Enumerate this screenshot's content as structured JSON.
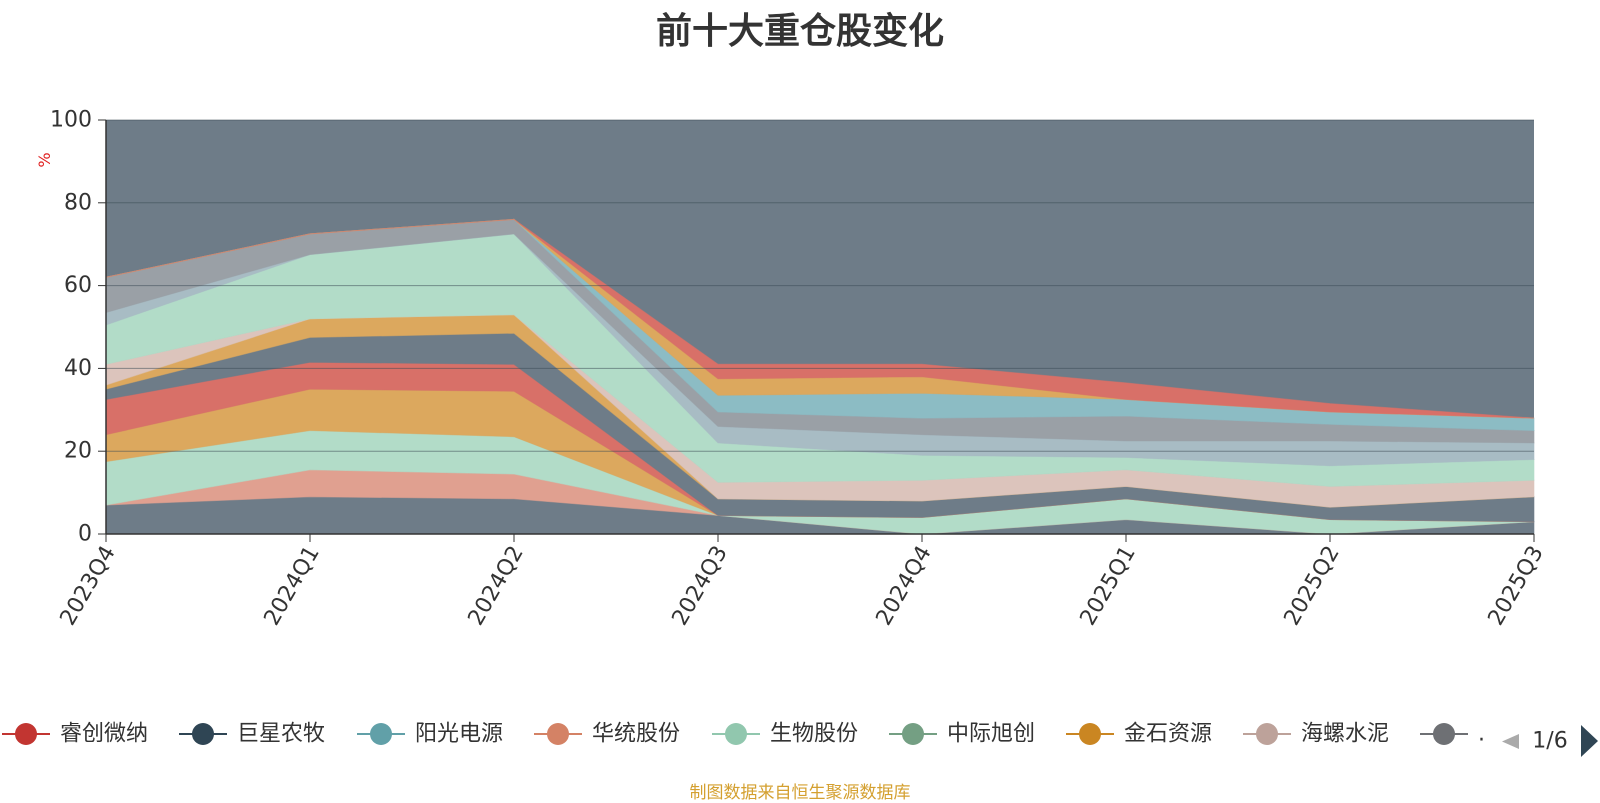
{
  "title": "前十大重仓股变化",
  "source_note": "制图数据来自恒生聚源数据库",
  "legend_page": "1/6",
  "chart_data": {
    "type": "area",
    "stacked": true,
    "unit_label": "%",
    "ylim": [
      0,
      100
    ],
    "yticks": [
      "0",
      "20",
      "40",
      "60",
      "80",
      "100"
    ],
    "categories": [
      "2023Q4",
      "2024Q1",
      "2024Q2",
      "2024Q3",
      "2024Q4",
      "2025Q1",
      "2025Q2",
      "2025Q3"
    ],
    "background_color": "#6e7c88",
    "grid": true,
    "legend_position": "bottom",
    "legend": [
      {
        "name": "睿创微纳",
        "color": "#c23531"
      },
      {
        "name": "巨星农牧",
        "color": "#2f4554"
      },
      {
        "name": "阳光电源",
        "color": "#61a0a8"
      },
      {
        "name": "华统股份",
        "color": "#d48265"
      },
      {
        "name": "生物股份",
        "color": "#91c7ae"
      },
      {
        "name": "中际旭创",
        "color": "#749f83"
      },
      {
        "name": "金石资源",
        "color": "#ca8622"
      },
      {
        "name": "海螺水泥",
        "color": "#bda29a"
      },
      {
        "name": ".",
        "color": "#6e7074"
      }
    ],
    "layers": [
      {
        "color": "#6e7c88",
        "values": [
          7,
          9,
          8.5,
          4.5,
          0,
          3.5,
          0,
          3
        ]
      },
      {
        "color": "#e0a090",
        "values": [
          0,
          6.5,
          6,
          0,
          0,
          0,
          0,
          0
        ]
      },
      {
        "color": "#b2dcc8",
        "values": [
          10.5,
          9.5,
          9,
          0,
          4,
          5,
          3.5,
          0
        ]
      },
      {
        "color": "#dca85e",
        "values": [
          6.5,
          10,
          11,
          0,
          0,
          0,
          0,
          0
        ]
      },
      {
        "color": "#d87068",
        "values": [
          8.5,
          6.5,
          6.5,
          0,
          0,
          0,
          0,
          0
        ]
      },
      {
        "color": "#6e7c88",
        "values": [
          2.5,
          6,
          7.5,
          4,
          4,
          3,
          3,
          6
        ]
      },
      {
        "color": "#dca85e",
        "values": [
          1,
          4.5,
          4.5,
          0,
          0,
          0,
          0,
          0
        ]
      },
      {
        "color": "#dcc4bc",
        "values": [
          5,
          0,
          0,
          4,
          5,
          4,
          5,
          4
        ]
      },
      {
        "color": "#b2dcc8",
        "values": [
          9.5,
          15.5,
          19.5,
          9.5,
          6,
          3,
          5,
          5
        ]
      },
      {
        "color": "#a8bcc4",
        "values": [
          3,
          0,
          0,
          4,
          5,
          4,
          6,
          4
        ]
      },
      {
        "color": "#9aa0a6",
        "values": [
          8.5,
          5,
          3.5,
          3.5,
          4,
          6,
          4,
          3
        ]
      },
      {
        "color": "#8cbcc4",
        "values": [
          0,
          0,
          0,
          4,
          6,
          4,
          3,
          3
        ]
      },
      {
        "color": "#dca85e",
        "values": [
          0,
          0,
          0,
          4,
          4,
          0,
          0,
          0
        ]
      },
      {
        "color": "#d87068",
        "values": [
          0,
          0,
          0,
          3.5,
          3,
          4,
          2,
          0
        ]
      }
    ]
  }
}
